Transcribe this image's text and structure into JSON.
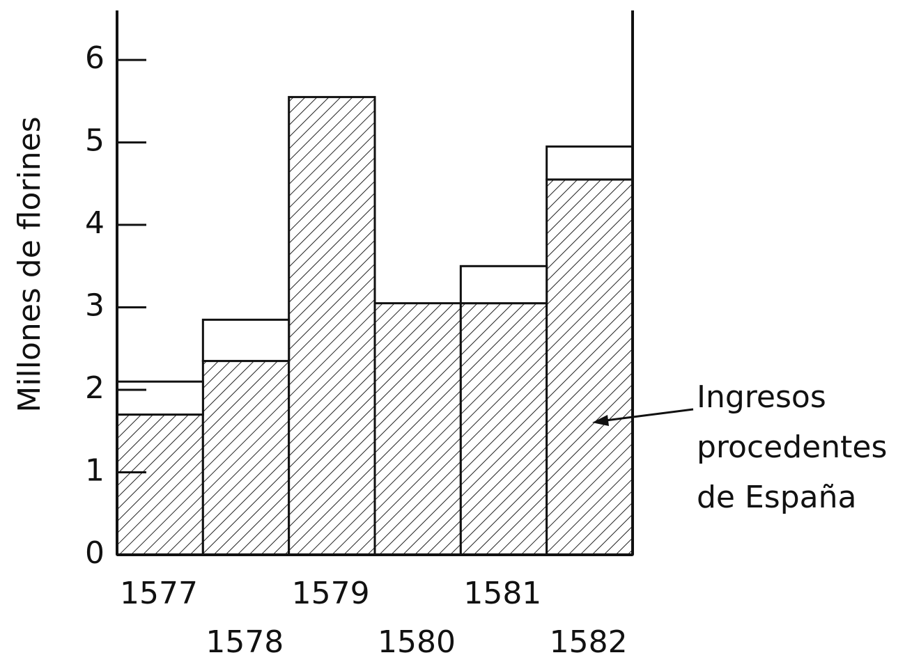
{
  "chart_data": {
    "type": "bar",
    "stacked": true,
    "ylabel": "Millones de florines",
    "categories": [
      "1577",
      "1578",
      "1579",
      "1580",
      "1581",
      "1582"
    ],
    "series": [
      {
        "name": "Ingresos procedentes de España",
        "color": "#222222",
        "hatched": true,
        "values": [
          1.7,
          2.35,
          5.55,
          3.05,
          3.05,
          4.55
        ]
      },
      {
        "color": "#ffffff",
        "hatched": false,
        "values": [
          0.4,
          0.5,
          0,
          0,
          0.45,
          0.4
        ]
      }
    ],
    "ylim": [
      0,
      6.6
    ],
    "yticks": [
      0,
      1,
      2,
      3,
      4,
      5,
      6
    ]
  }
}
